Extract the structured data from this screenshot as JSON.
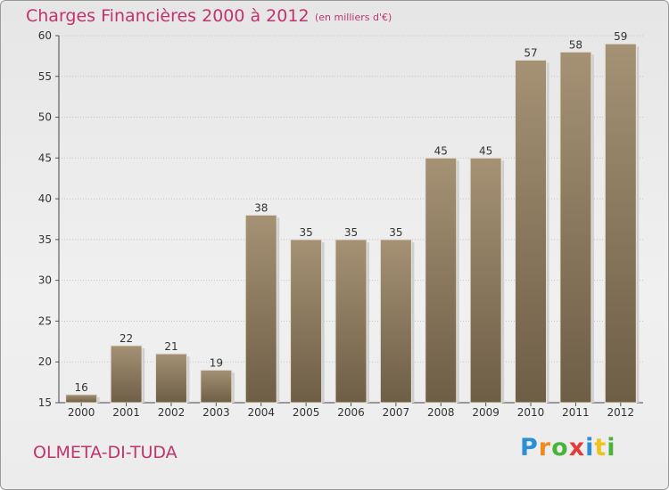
{
  "header": {
    "title": "Charges Financières 2000 à 2012",
    "subtitle": "(en milliers d'€)"
  },
  "footer": {
    "commune": "OLMETA-DI-TUDA",
    "brand_letters": [
      "P",
      "r",
      "o",
      "x",
      "i",
      "t",
      "i"
    ],
    "brand_colors": [
      "#2a8fd6",
      "#f08a1c",
      "#4ab43a",
      "#e23b3b",
      "#2a8fd6",
      "#f0c21c",
      "#4ab43a"
    ]
  },
  "colors": {
    "bar": "#a59275",
    "bar_dark": "#6e5e46",
    "title": "#c0336e"
  },
  "chart_data": {
    "type": "bar",
    "title": "Charges Financières 2000 à 2012",
    "subtitle": "(en milliers d'€)",
    "categories": [
      "2000",
      "2001",
      "2002",
      "2003",
      "2004",
      "2005",
      "2006",
      "2007",
      "2008",
      "2009",
      "2010",
      "2011",
      "2012"
    ],
    "values": [
      16,
      22,
      21,
      19,
      38,
      35,
      35,
      35,
      45,
      45,
      57,
      58,
      59
    ],
    "ylim": [
      15,
      60
    ],
    "yticks": [
      15,
      20,
      25,
      30,
      35,
      40,
      45,
      50,
      55,
      60
    ],
    "grid": true,
    "data_labels": true
  }
}
